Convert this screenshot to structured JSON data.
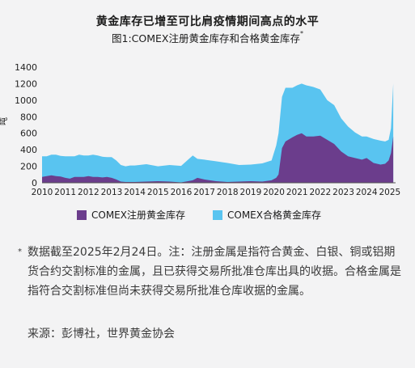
{
  "header": {
    "title": "黄金库存已增至可比肩疫情期间高点的水平",
    "subtitle": "图1:COMEX注册黄金库存和合格黄金库存",
    "subtitle_mark": "*"
  },
  "chart_data": {
    "type": "area",
    "title": "",
    "xlabel": "",
    "ylabel": "吨",
    "ylim": [
      0,
      1400
    ],
    "yticks": [
      0,
      200,
      400,
      600,
      800,
      1000,
      1200,
      1400
    ],
    "xlim": [
      2010,
      2025.25
    ],
    "xticks": [
      "2010",
      "2011",
      "2012",
      "2013",
      "2014",
      "2015",
      "2016",
      "2017",
      "2018",
      "2019",
      "2020",
      "2021",
      "2022",
      "2023",
      "2024",
      "2025"
    ],
    "grid": false,
    "legend_position": "bottom",
    "stacked": true,
    "x": [
      2010.0,
      2010.2,
      2010.4,
      2010.6,
      2010.8,
      2011.0,
      2011.2,
      2011.4,
      2011.6,
      2011.8,
      2012.0,
      2012.2,
      2012.4,
      2012.6,
      2012.8,
      2013.0,
      2013.2,
      2013.4,
      2013.6,
      2013.8,
      2014.0,
      2014.5,
      2015.0,
      2015.5,
      2016.0,
      2016.3,
      2016.5,
      2016.7,
      2017.0,
      2017.5,
      2018.0,
      2018.5,
      2019.0,
      2019.5,
      2019.9,
      2020.1,
      2020.2,
      2020.35,
      2020.5,
      2020.8,
      2021.0,
      2021.2,
      2021.4,
      2021.7,
      2022.0,
      2022.3,
      2022.6,
      2022.9,
      2023.2,
      2023.5,
      2023.8,
      2024.0,
      2024.3,
      2024.6,
      2024.8,
      2024.95,
      2025.05,
      2025.15
    ],
    "series": [
      {
        "name": "COMEX注册黄金库存",
        "color": "#6b3d8c",
        "values": [
          70,
          80,
          90,
          80,
          75,
          60,
          50,
          70,
          70,
          70,
          80,
          70,
          70,
          65,
          70,
          60,
          40,
          15,
          10,
          10,
          10,
          15,
          20,
          15,
          5,
          20,
          30,
          60,
          40,
          20,
          10,
          15,
          20,
          15,
          30,
          60,
          100,
          420,
          500,
          550,
          580,
          600,
          560,
          560,
          570,
          520,
          470,
          380,
          320,
          300,
          280,
          300,
          240,
          220,
          230,
          270,
          360,
          560
        ]
      },
      {
        "name": "COMEX合格黄金库存",
        "color": "#59c4f0",
        "values": [
          250,
          240,
          250,
          260,
          250,
          260,
          270,
          250,
          270,
          260,
          250,
          270,
          260,
          250,
          240,
          250,
          230,
          200,
          190,
          200,
          200,
          210,
          180,
          200,
          200,
          260,
          300,
          230,
          240,
          240,
          230,
          200,
          200,
          220,
          240,
          390,
          500,
          620,
          650,
          600,
          600,
          600,
          620,
          600,
          560,
          480,
          470,
          400,
          360,
          310,
          280,
          260,
          290,
          290,
          270,
          250,
          300,
          640
        ]
      }
    ]
  },
  "note": {
    "mark": "*",
    "text": "数据截至2025年2月24日。注：注册金属是指符合黄金、白银、铜或铝期货合约交割标准的金属，且已获得交易所批准仓库出具的收据。合格金属是指符合交割标准但尚未获得交易所批准仓库收据的金属。"
  },
  "source": "来源：彭博社，世界黄金协会"
}
